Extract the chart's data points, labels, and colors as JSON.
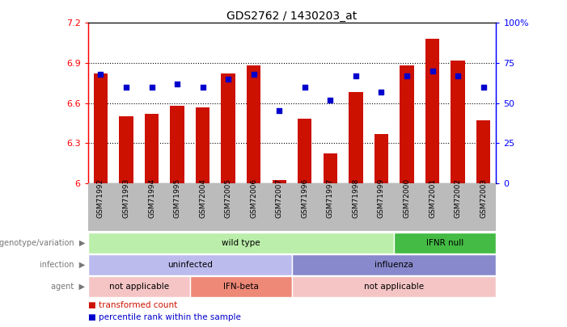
{
  "title": "GDS2762 / 1430203_at",
  "samples": [
    "GSM71992",
    "GSM71993",
    "GSM71994",
    "GSM71995",
    "GSM72004",
    "GSM72005",
    "GSM72006",
    "GSM72007",
    "GSM71996",
    "GSM71997",
    "GSM71998",
    "GSM71999",
    "GSM72000",
    "GSM72001",
    "GSM72002",
    "GSM72003"
  ],
  "bar_values": [
    6.82,
    6.5,
    6.52,
    6.58,
    6.57,
    6.82,
    6.88,
    6.02,
    6.48,
    6.22,
    6.68,
    6.37,
    6.88,
    7.08,
    6.92,
    6.47
  ],
  "percentile_values": [
    68,
    60,
    60,
    62,
    60,
    65,
    68,
    45,
    60,
    52,
    67,
    57,
    67,
    70,
    67,
    60
  ],
  "y_min": 6.0,
  "y_max": 7.2,
  "y_ticks": [
    6.0,
    6.3,
    6.6,
    6.9,
    7.2
  ],
  "y_tick_labels": [
    "6",
    "6.3",
    "6.6",
    "6.9",
    "7.2"
  ],
  "right_y_ticks": [
    0,
    25,
    50,
    75,
    100
  ],
  "right_y_tick_labels": [
    "0",
    "25",
    "50",
    "75",
    "100%"
  ],
  "bar_color": "#cc1100",
  "dot_color": "#0000cc",
  "bar_baseline": 6.0,
  "genotype_groups": [
    {
      "label": "wild type",
      "start": 0,
      "end": 12,
      "color": "#bbeeaa"
    },
    {
      "label": "IFNR null",
      "start": 12,
      "end": 16,
      "color": "#44bb44"
    }
  ],
  "infection_groups": [
    {
      "label": "uninfected",
      "start": 0,
      "end": 8,
      "color": "#bbbbee"
    },
    {
      "label": "influenza",
      "start": 8,
      "end": 16,
      "color": "#8888cc"
    }
  ],
  "agent_groups": [
    {
      "label": "not applicable",
      "start": 0,
      "end": 4,
      "color": "#f5c5c5"
    },
    {
      "label": "IFN-beta",
      "start": 4,
      "end": 8,
      "color": "#ee8877"
    },
    {
      "label": "not applicable",
      "start": 8,
      "end": 16,
      "color": "#f5c5c5"
    }
  ],
  "row_labels": [
    "genotype/variation",
    "infection",
    "agent"
  ],
  "legend_red_label": "transformed count",
  "legend_blue_label": "percentile rank within the sample",
  "legend_red_color": "#cc1100",
  "legend_blue_color": "#0000cc",
  "xticklabel_bg": "#bbbbbb",
  "grid_lines": [
    6.3,
    6.6,
    6.9
  ]
}
